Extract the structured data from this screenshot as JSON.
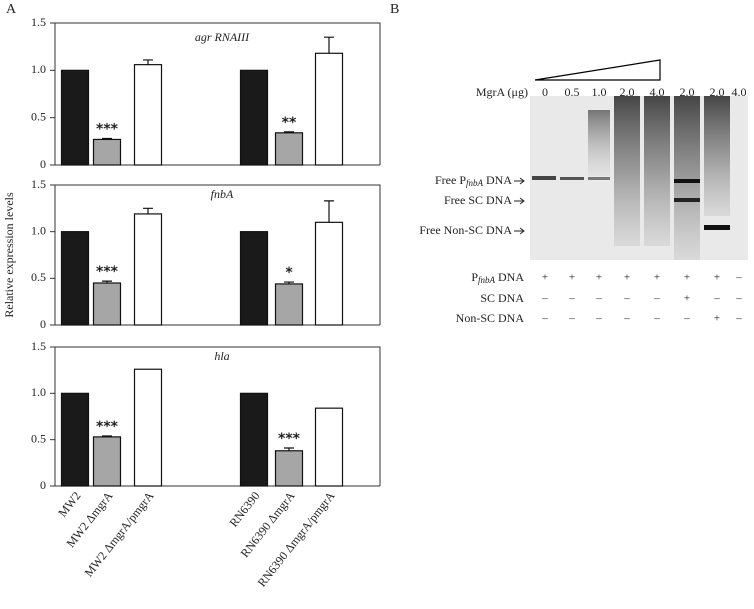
{
  "panel_labels": [
    "A",
    "B"
  ],
  "ylabel": "Relative expression levels",
  "categories": [
    "MW2",
    "MW2 ΔmgrA",
    "MW2 ΔmgrA/pmgrA",
    "RN6390",
    "RN6390 ΔmgrA",
    "RN6390 ΔmgrA/pmgrA"
  ],
  "colors": [
    "#1a1a1a",
    "#a6a6a6",
    "#ffffff",
    "#1a1a1a",
    "#a6a6a6",
    "#ffffff"
  ],
  "chart_data": [
    {
      "type": "bar",
      "title": "agr RNAIII",
      "values": [
        1.0,
        0.27,
        1.06,
        1.0,
        0.34,
        1.18
      ],
      "errors": [
        0,
        0.01,
        0.05,
        0,
        0.01,
        0.17
      ],
      "significance": [
        null,
        "***",
        null,
        null,
        "**",
        null
      ],
      "ylim": [
        0,
        1.5
      ],
      "yticks": [
        0,
        0.5,
        {
          "value": 1,
          "label": "1.0"
        },
        1.5
      ]
    },
    {
      "type": "bar",
      "title": "fnbA",
      "values": [
        1.0,
        0.45,
        1.19,
        1.0,
        0.44,
        1.1
      ],
      "errors": [
        0,
        0.02,
        0.06,
        0,
        0.02,
        0.23
      ],
      "significance": [
        null,
        "***",
        null,
        null,
        "*",
        null
      ],
      "ylim": [
        0,
        1.5
      ],
      "yticks": [
        0,
        0.5,
        {
          "value": 1,
          "label": "1.0"
        },
        1.5
      ]
    },
    {
      "type": "bar",
      "title": "hla",
      "values": [
        1.0,
        0.53,
        1.26,
        1.0,
        0.38,
        0.84
      ],
      "errors": [
        0,
        0.01,
        0,
        0,
        0.03,
        0
      ],
      "significance": [
        null,
        "***",
        null,
        null,
        "***",
        null
      ],
      "ylim": [
        0,
        1.5
      ],
      "yticks": [
        0,
        0.5,
        {
          "value": 1,
          "label": "1.0"
        },
        1.5
      ]
    }
  ],
  "gel": {
    "dose_label": "MgrA (μg)",
    "doses": [
      "0",
      "0.5",
      "1.0",
      "2.0",
      "4.0",
      "2.0",
      "2.0",
      "4.0"
    ],
    "band_labels": [
      [
        "Free P",
        "fnbA",
        " DNA"
      ],
      [
        "Free SC DNA"
      ],
      [
        "Free Non-SC DNA"
      ]
    ],
    "rows": [
      {
        "label": [
          "P",
          "fnbA",
          " DNA"
        ],
        "signs": [
          "+",
          "+",
          "+",
          "+",
          "+",
          "+",
          "+",
          "–"
        ]
      },
      {
        "label": [
          "SC DNA"
        ],
        "signs": [
          "–",
          "–",
          "–",
          "–",
          "–",
          "+",
          "–",
          "–"
        ]
      },
      {
        "label": [
          "Non-SC DNA"
        ],
        "signs": [
          "–",
          "–",
          "–",
          "–",
          "–",
          "–",
          "+",
          "–"
        ]
      }
    ]
  }
}
